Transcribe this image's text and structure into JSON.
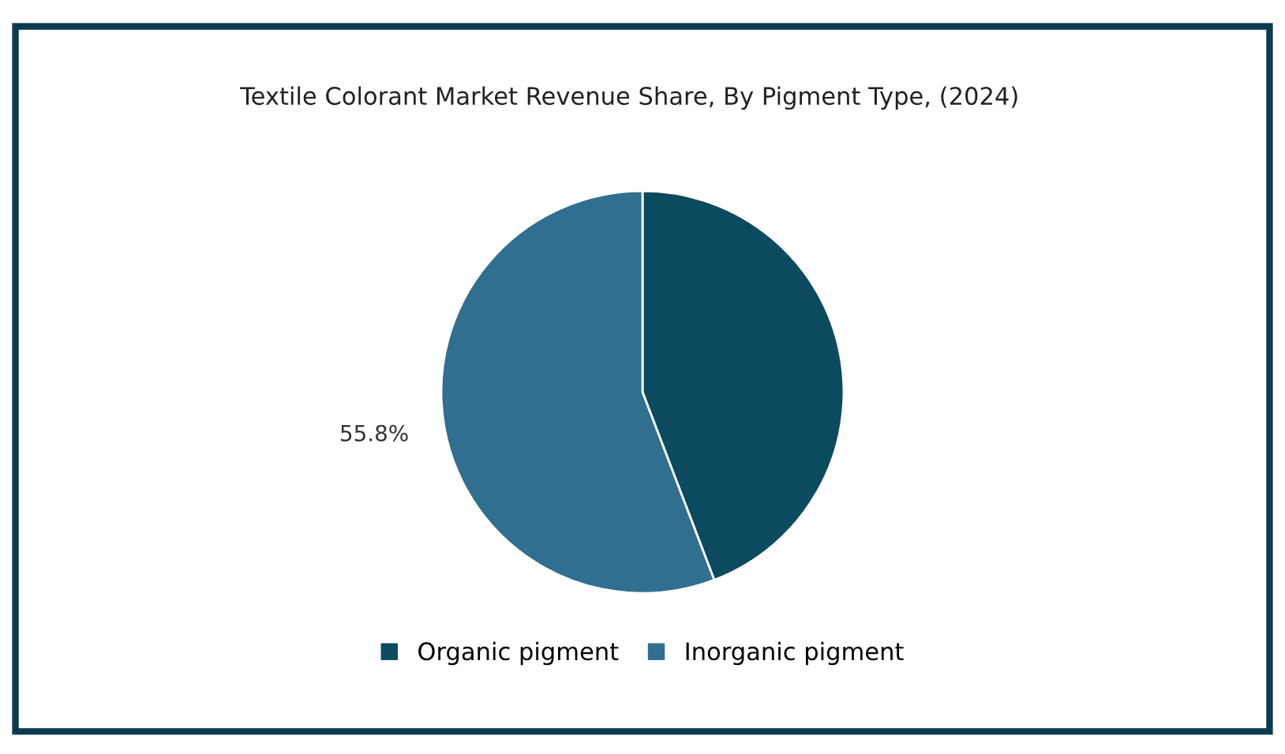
{
  "chart_data": {
    "type": "pie",
    "title": "Textile Colorant Market Revenue Share, By Pigment Type, (2024)",
    "categories": [
      "Organic pigment",
      "Inorganic pigment"
    ],
    "values": [
      44.2,
      55.8
    ],
    "colors": [
      "#0b4a5f",
      "#306f8f"
    ],
    "value_labels": [
      null,
      "55.8%"
    ],
    "legend": "bottom"
  }
}
